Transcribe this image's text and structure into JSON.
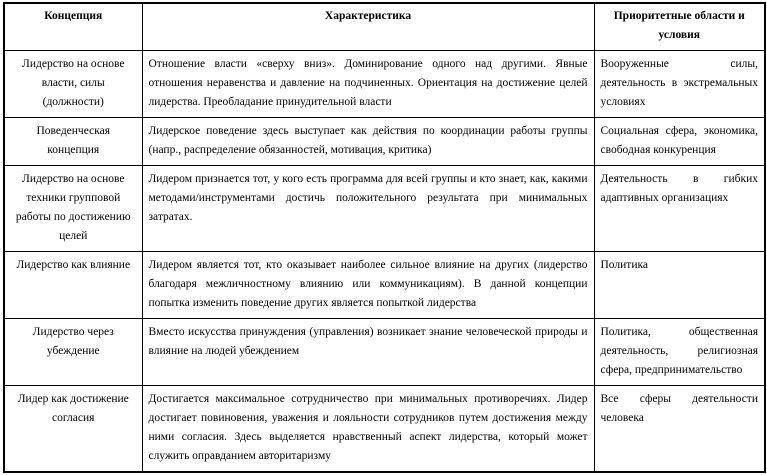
{
  "table": {
    "headers": {
      "concept": "Концепция",
      "characteristic": "Характеристика",
      "priority": "Приоритетные области и условия"
    },
    "rows": [
      {
        "concept": "Лидерство на основе власти, силы (должности)",
        "characteristic": "Отношение власти «сверху вниз». Доминирование одного над другими. Явные отношения неравенства и давление на подчиненных. Ориентация на достижение целей лидерства. Преобладание принудительной власти",
        "priority": "Вооруженные силы, деятельность в экстремальных условиях"
      },
      {
        "concept": "Поведенческая концепция",
        "characteristic": "Лидерское поведение здесь выступает как действия по координации работы группы (напр., распределение обязанностей, мотивация, критика)",
        "priority": "Социальная сфера, экономика, свободная конкуренция"
      },
      {
        "concept": "Лидерство на основе техники групповой работы по достижению целей",
        "characteristic": "Лидером признается тот, у кого есть программа для всей группы и кто знает, как, какими методами/инструментами достичь положительного результата при минимальных затратах.",
        "priority": "Деятельность в гибких адаптивных организациях"
      },
      {
        "concept": "Лидерство как влияние",
        "characteristic": "Лидером является тот, кто оказывает наиболее сильное влияние на других (лидерство благодаря межличностному влиянию или коммуникациям). В данной концепции попытка изменить поведение других является попыткой лидерства",
        "priority": "Политика"
      },
      {
        "concept": "Лидерство через убеждение",
        "characteristic": "Вместо искусства принуждения (управления) возникает знание человеческой природы и влияние на людей убеждением",
        "priority": "Политика, общественная деятельность, религиозная сфера, предпринимательство"
      },
      {
        "concept": "Лидер как достижение согласия",
        "characteristic": "Достигается максимальное сотрудничество при минимальных противоречиях. Лидер достигает повиновения, уважения и лояльности сотрудников путем достижения между ними согласия. Здесь выделяется нравственный аспект лидерства, который может служить оправданием авторитаризму",
        "priority": "Все сферы деятельности человека"
      }
    ]
  }
}
